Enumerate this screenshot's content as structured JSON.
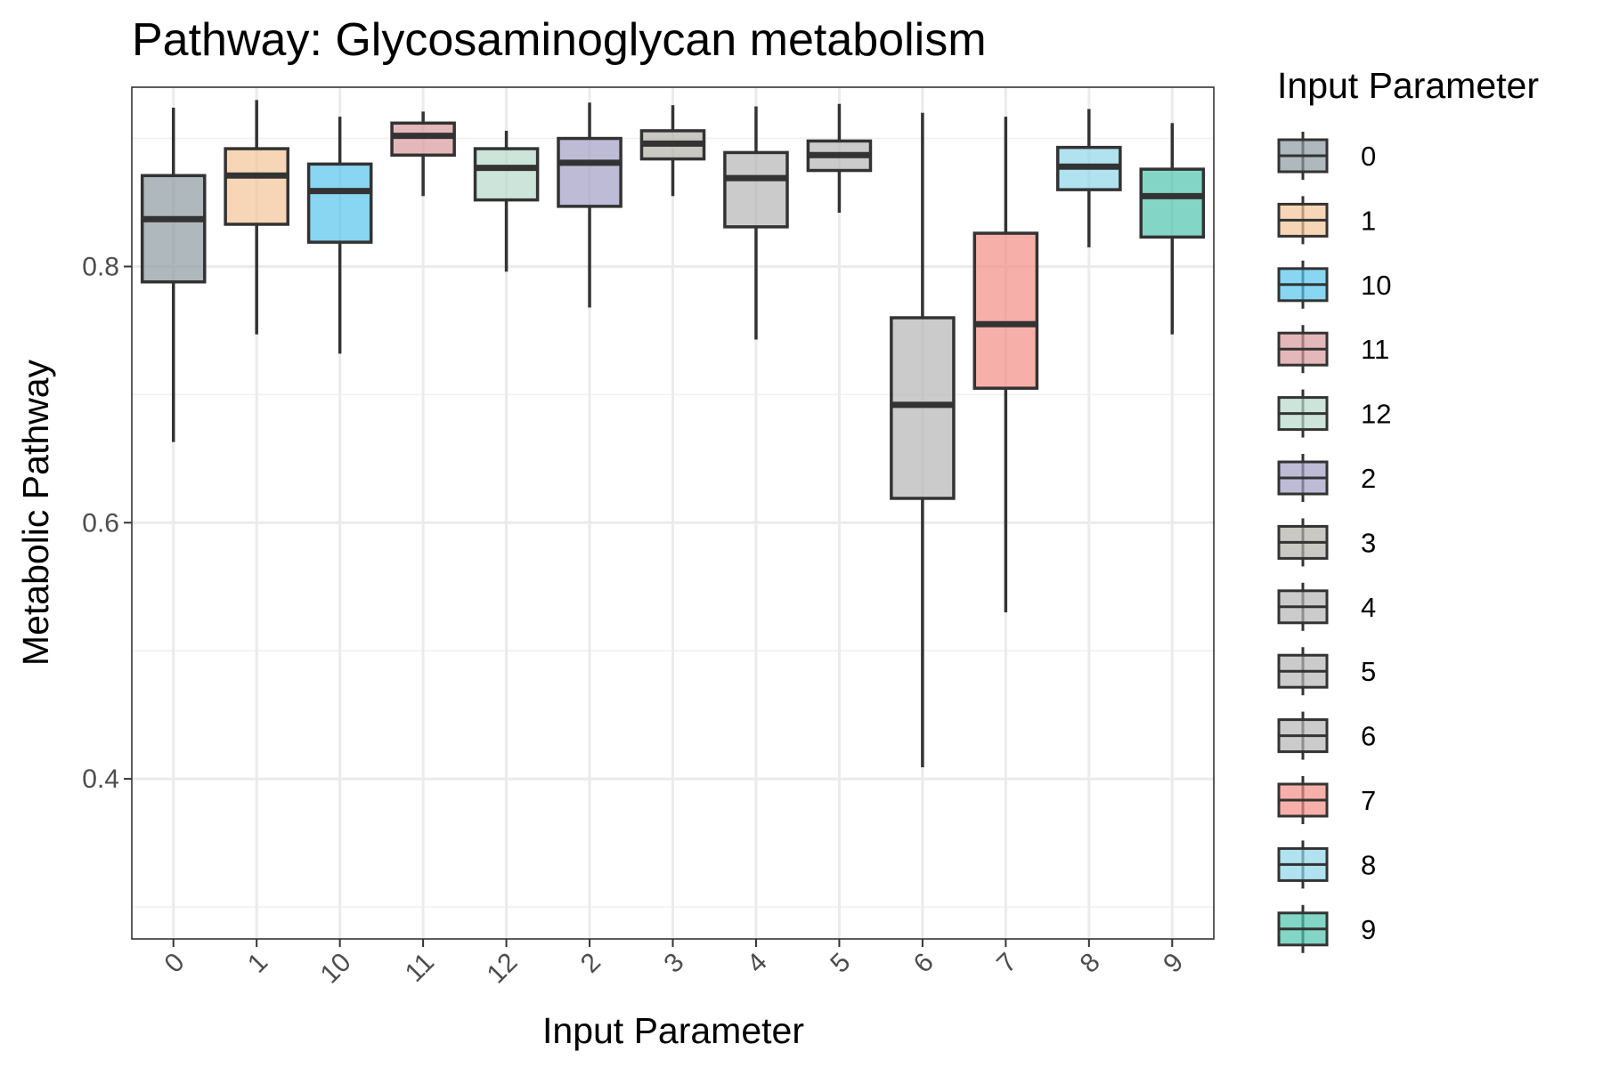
{
  "chart_data": {
    "type": "box",
    "title": "Pathway: Glycosaminoglycan metabolism",
    "xlabel": "Input Parameter",
    "ylabel": "Metabolic Pathway",
    "ylim": [
      0.275,
      0.94
    ],
    "y_ticks": [
      0.4,
      0.6,
      0.8
    ],
    "y_tick_labels": [
      "0.4",
      "0.6",
      "0.8"
    ],
    "y_minor_gridlines": [
      0.3,
      0.5,
      0.7,
      0.9
    ],
    "grid": true,
    "legend_title": "Input Parameter",
    "legend_position": "right",
    "categories": [
      "0",
      "1",
      "10",
      "11",
      "12",
      "2",
      "3",
      "4",
      "5",
      "6",
      "7",
      "8",
      "9"
    ],
    "boxes": [
      {
        "category": "0",
        "min": 0.663,
        "q1": 0.788,
        "median": 0.837,
        "q3": 0.871,
        "max": 0.924,
        "color": "#8c9aa1"
      },
      {
        "category": "1",
        "min": 0.747,
        "q1": 0.833,
        "median": 0.871,
        "q3": 0.892,
        "max": 0.93,
        "color": "#f2c597"
      },
      {
        "category": "10",
        "min": 0.732,
        "q1": 0.819,
        "median": 0.859,
        "q3": 0.88,
        "max": 0.917,
        "color": "#56c5ec"
      },
      {
        "category": "11",
        "min": 0.855,
        "q1": 0.887,
        "median": 0.902,
        "q3": 0.912,
        "max": 0.921,
        "color": "#d99a9c"
      },
      {
        "category": "12",
        "min": 0.796,
        "q1": 0.852,
        "median": 0.877,
        "q3": 0.892,
        "max": 0.906,
        "color": "#b7d9cb"
      },
      {
        "category": "2",
        "min": 0.768,
        "q1": 0.847,
        "median": 0.881,
        "q3": 0.9,
        "max": 0.928,
        "color": "#a39ec4"
      },
      {
        "category": "3",
        "min": 0.855,
        "q1": 0.884,
        "median": 0.896,
        "q3": 0.906,
        "max": 0.926,
        "color": "#b3b1a8"
      },
      {
        "category": "4",
        "min": 0.743,
        "q1": 0.831,
        "median": 0.869,
        "q3": 0.889,
        "max": 0.925,
        "color": "#b5b5b5"
      },
      {
        "category": "5",
        "min": 0.842,
        "q1": 0.875,
        "median": 0.887,
        "q3": 0.898,
        "max": 0.927,
        "color": "#b5b5b5"
      },
      {
        "category": "6",
        "min": 0.409,
        "q1": 0.619,
        "median": 0.692,
        "q3": 0.76,
        "max": 0.92,
        "color": "#b5b5b5"
      },
      {
        "category": "7",
        "min": 0.53,
        "q1": 0.705,
        "median": 0.755,
        "q3": 0.826,
        "max": 0.917,
        "color": "#f28f84"
      },
      {
        "category": "8",
        "min": 0.815,
        "q1": 0.86,
        "median": 0.878,
        "q3": 0.893,
        "max": 0.923,
        "color": "#8fd6e8"
      },
      {
        "category": "9",
        "min": 0.747,
        "q1": 0.823,
        "median": 0.855,
        "q3": 0.876,
        "max": 0.912,
        "color": "#4fc3ad"
      }
    ]
  }
}
